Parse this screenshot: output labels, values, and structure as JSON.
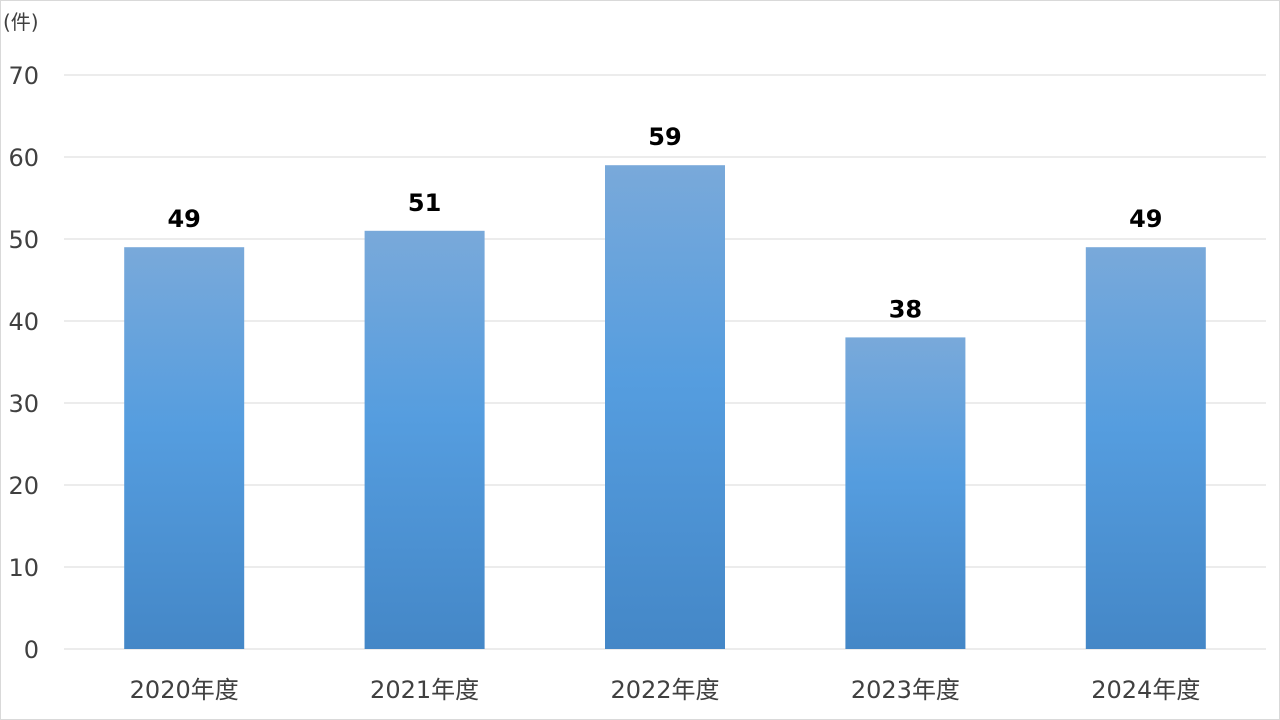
{
  "chart_data": {
    "type": "bar",
    "unit_label": "(件)",
    "categories": [
      "2020年度",
      "2021年度",
      "2022年度",
      "2023年度",
      "2024年度"
    ],
    "values": [
      49,
      51,
      59,
      38,
      49
    ],
    "ylim": [
      0,
      70
    ],
    "yticks": [
      0,
      10,
      20,
      30,
      40,
      50,
      60,
      70
    ],
    "grid": true,
    "legend": "none",
    "colors": {
      "bar_top": "#79a9da",
      "bar_mid": "#559ddf",
      "bar_bottom": "#4487c7",
      "gridline": "#d9d9d9",
      "text": "#404040",
      "data_label": "#000000"
    }
  }
}
